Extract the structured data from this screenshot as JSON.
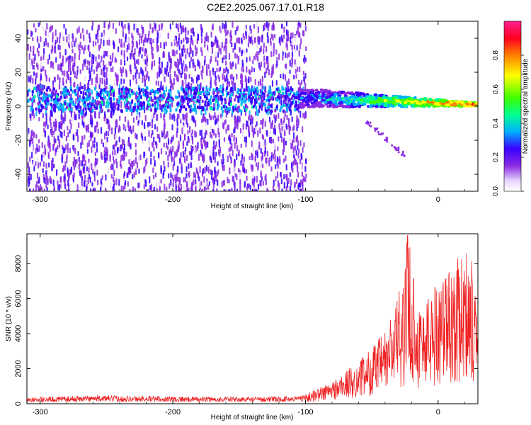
{
  "title": "C2E2.2025.067.17.01.R18",
  "chart_data": [
    {
      "type": "heatmap",
      "xlabel": "Height of straight line (km)",
      "ylabel": "Frequency (Hz)",
      "xlim": [
        -310,
        30
      ],
      "ylim": [
        -50,
        50
      ],
      "xticks": [
        "-300",
        "-200",
        "-100",
        "0"
      ],
      "xtick_values": [
        -300,
        -200,
        -100,
        0
      ],
      "yticks": [
        "-40",
        "-20",
        "0",
        "20",
        "40"
      ],
      "ytick_values": [
        -40,
        -20,
        0,
        20,
        40
      ],
      "colorbar": {
        "label": "Normalized spectral amplitude",
        "range": [
          0,
          1
        ],
        "ticks": [
          "0.0",
          "0.2",
          "0.4",
          "0.6",
          "0.8"
        ],
        "tick_values": [
          0,
          0.2,
          0.4,
          0.6,
          0.8
        ]
      },
      "features": {
        "noise_region_x": [
          -310,
          -100
        ],
        "signal_onset_x": -105,
        "ridge_frequency_start": 5,
        "ridge_frequency_end": 1
      }
    },
    {
      "type": "line",
      "xlabel": "Height of straight line (km)",
      "ylabel": "SNR (10 * v/v)",
      "xlim": [
        -310,
        30
      ],
      "ylim": [
        0,
        9700
      ],
      "xticks": [
        "-300",
        "-200",
        "-100",
        "0"
      ],
      "xtick_values": [
        -300,
        -200,
        -100,
        0
      ],
      "yticks": [
        "0",
        "2000",
        "4000",
        "6000",
        "8000"
      ],
      "ytick_values": [
        0,
        2000,
        4000,
        6000,
        8000
      ],
      "series": [
        {
          "color": "#ee2222",
          "envelope_x": [
            -310,
            -260,
            -200,
            -150,
            -110,
            -100,
            -80,
            -60,
            -40,
            -25,
            -23,
            -15,
            -5,
            0,
            10,
            20,
            30
          ],
          "envelope_y": [
            300,
            400,
            350,
            320,
            350,
            500,
            1200,
            2200,
            3800,
            6800,
            9600,
            5200,
            6000,
            6800,
            7200,
            8000,
            8300
          ]
        }
      ]
    }
  ]
}
